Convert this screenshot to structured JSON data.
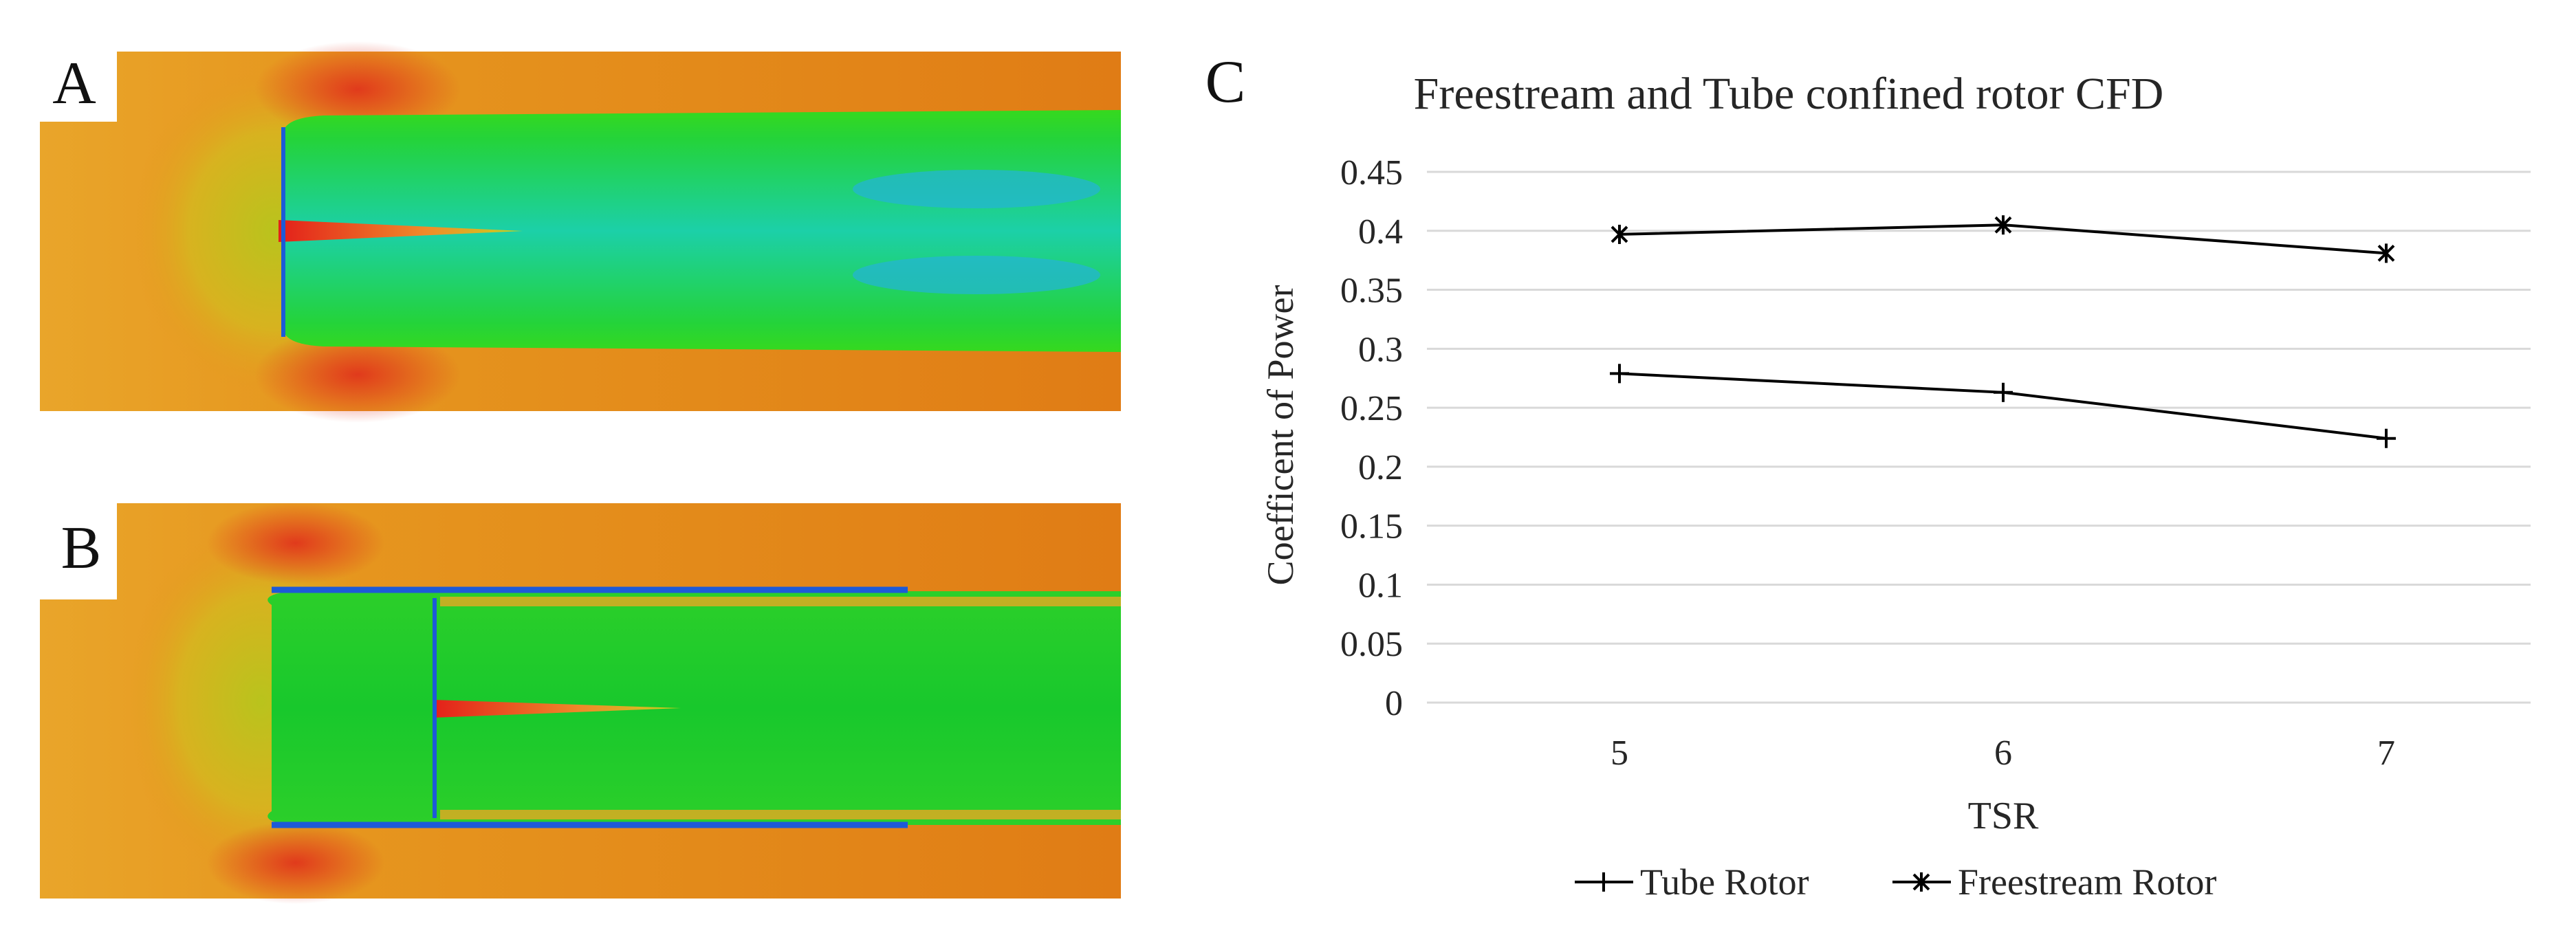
{
  "panels": {
    "a": {
      "label": "A"
    },
    "b": {
      "label": "B"
    },
    "c": {
      "label": "C"
    }
  },
  "colors": {
    "flow_outer": "#e7861a",
    "flow_hot": "#e2401c",
    "flow_mid": "#c7cc1a",
    "flow_wake": "#1fd11e",
    "flow_core": "#1bd0b8",
    "flow_fast": "#23b4d9",
    "duct_wall": "#1d5ad8",
    "chart_line": "#000000",
    "grid": "#d9d9d9",
    "text": "#262626"
  },
  "chart_data": {
    "type": "line",
    "title": "Freestream and Tube confined rotor CFD",
    "xlabel": "TSR",
    "ylabel": "Coefficent of Power",
    "categories": [
      "5",
      "6",
      "7"
    ],
    "x": [
      5,
      6,
      7
    ],
    "ylim": [
      0,
      0.45
    ],
    "yticks": [
      "0",
      "0.05",
      "0.1",
      "0.15",
      "0.2",
      "0.25",
      "0.3",
      "0.35",
      "0.4",
      "0.45"
    ],
    "grid": true,
    "legend": "bottom",
    "series": [
      {
        "name": "Tube Rotor",
        "marker": "plus",
        "values": [
          0.279,
          0.263,
          0.224
        ]
      },
      {
        "name": "Freestream Rotor",
        "marker": "star",
        "values": [
          0.397,
          0.405,
          0.381
        ]
      }
    ]
  }
}
